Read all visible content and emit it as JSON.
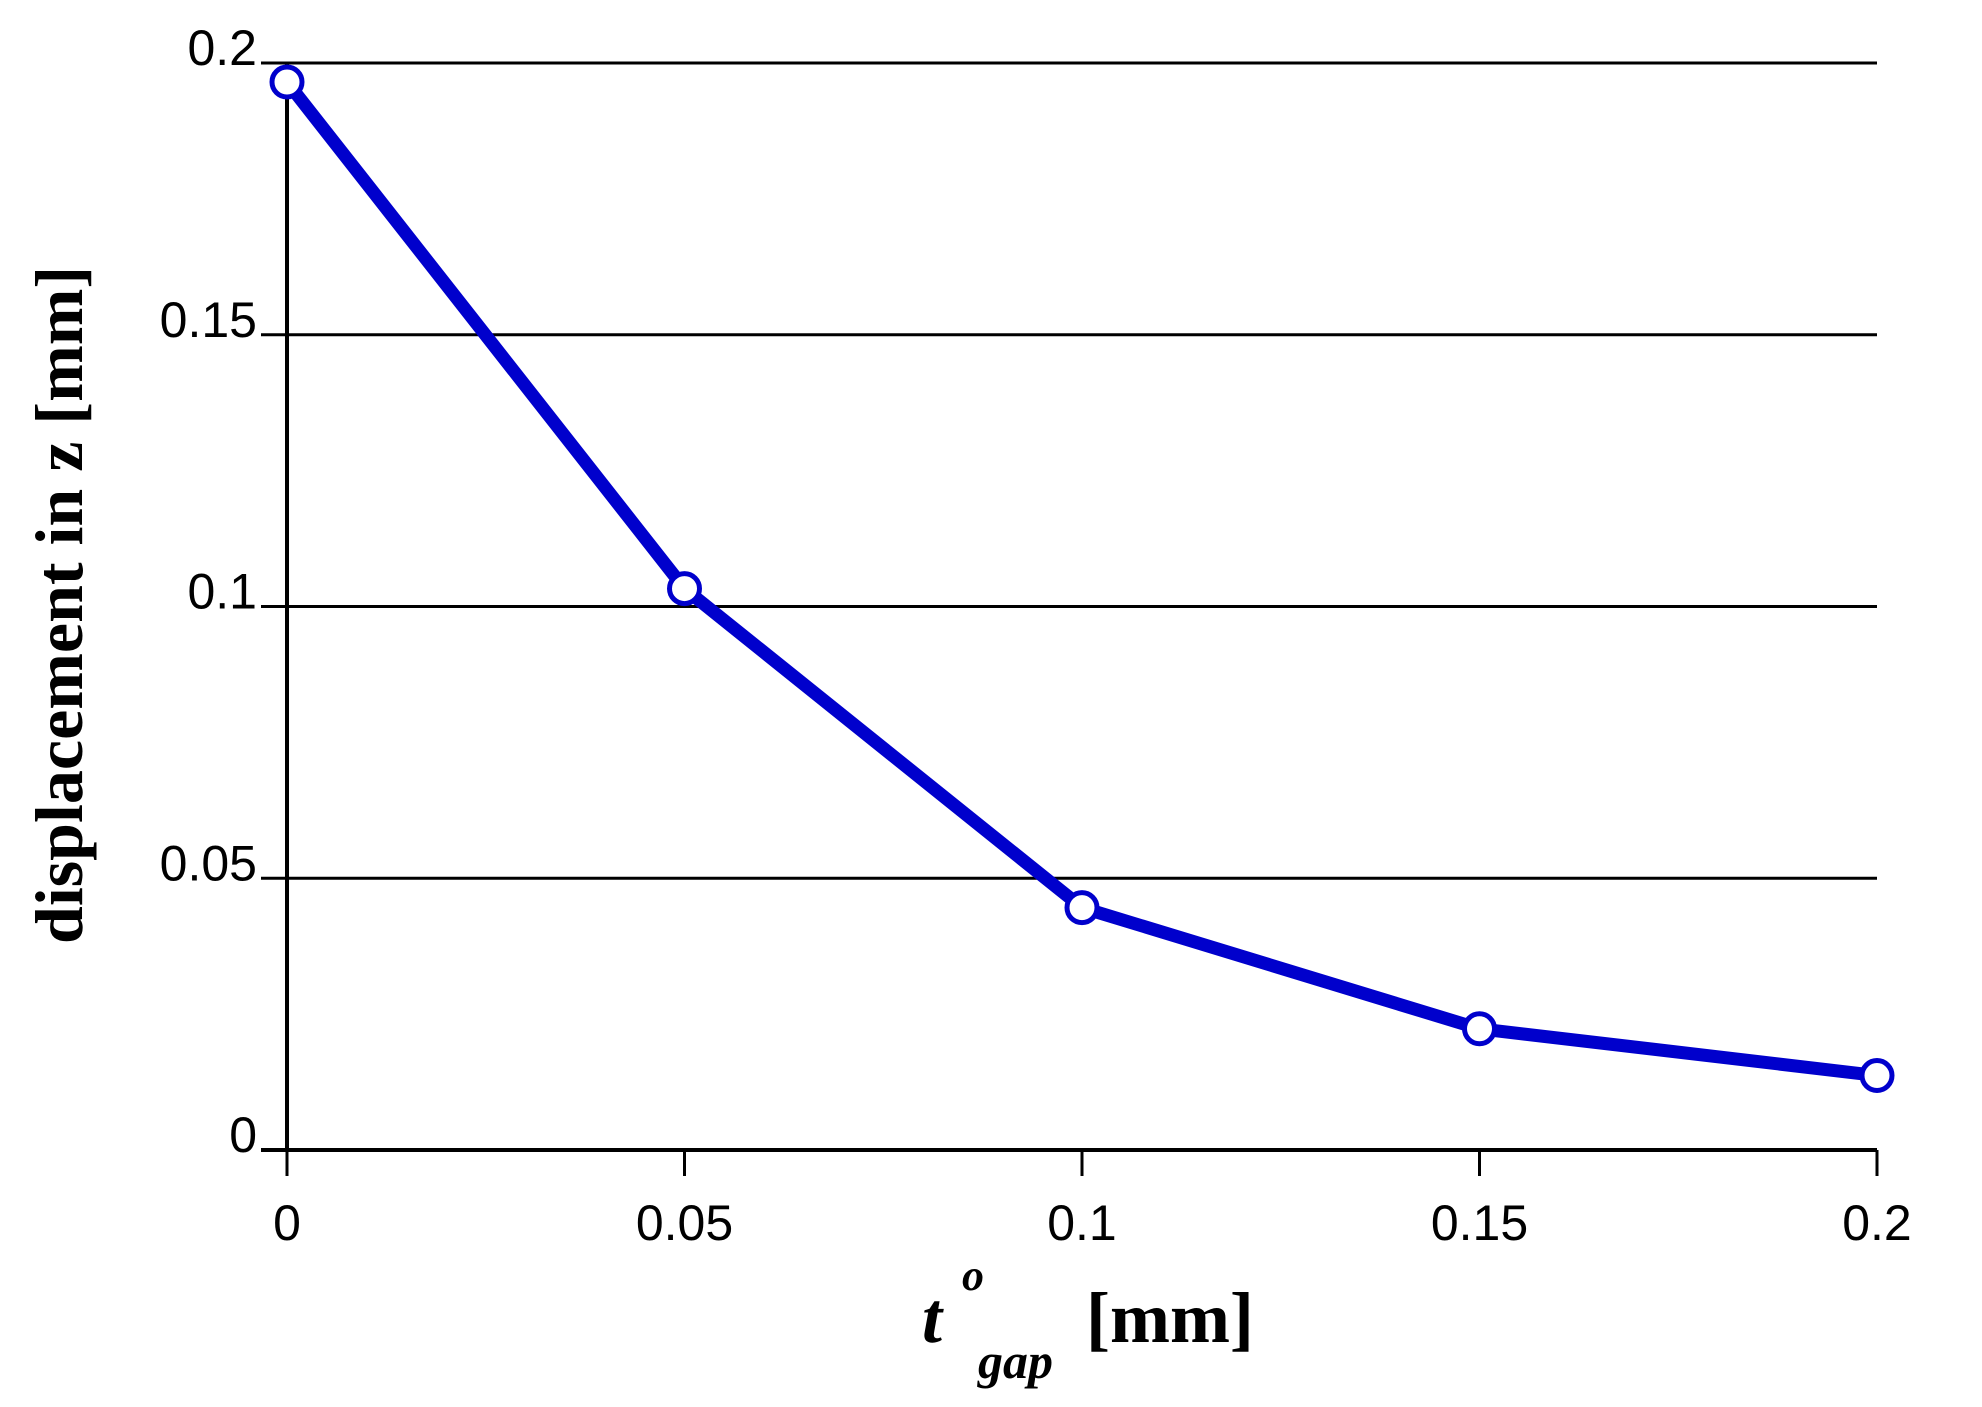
{
  "chart_data": {
    "type": "line",
    "title": "",
    "xlabel": {
      "symbol": "t",
      "superscript": "o",
      "subscript": "gap",
      "unit": "[mm]"
    },
    "ylabel": "displacement in z [mm]",
    "xlim": [
      0,
      0.2
    ],
    "ylim": [
      0,
      0.2
    ],
    "x_ticks": [
      "0",
      "0.05",
      "0.1",
      "0.15",
      "0.2"
    ],
    "y_ticks": [
      "0",
      "0.05",
      "0.1",
      "0.15",
      "0.2"
    ],
    "grid": "horizontal",
    "legend": "none",
    "series": [
      {
        "x": [
          0,
          0.05,
          0.1,
          0.15,
          0.2
        ],
        "y": [
          0.1965,
          0.1033,
          0.0446,
          0.0223,
          0.0137
        ],
        "color": "#0000cc",
        "marker": "open-circle"
      }
    ]
  }
}
